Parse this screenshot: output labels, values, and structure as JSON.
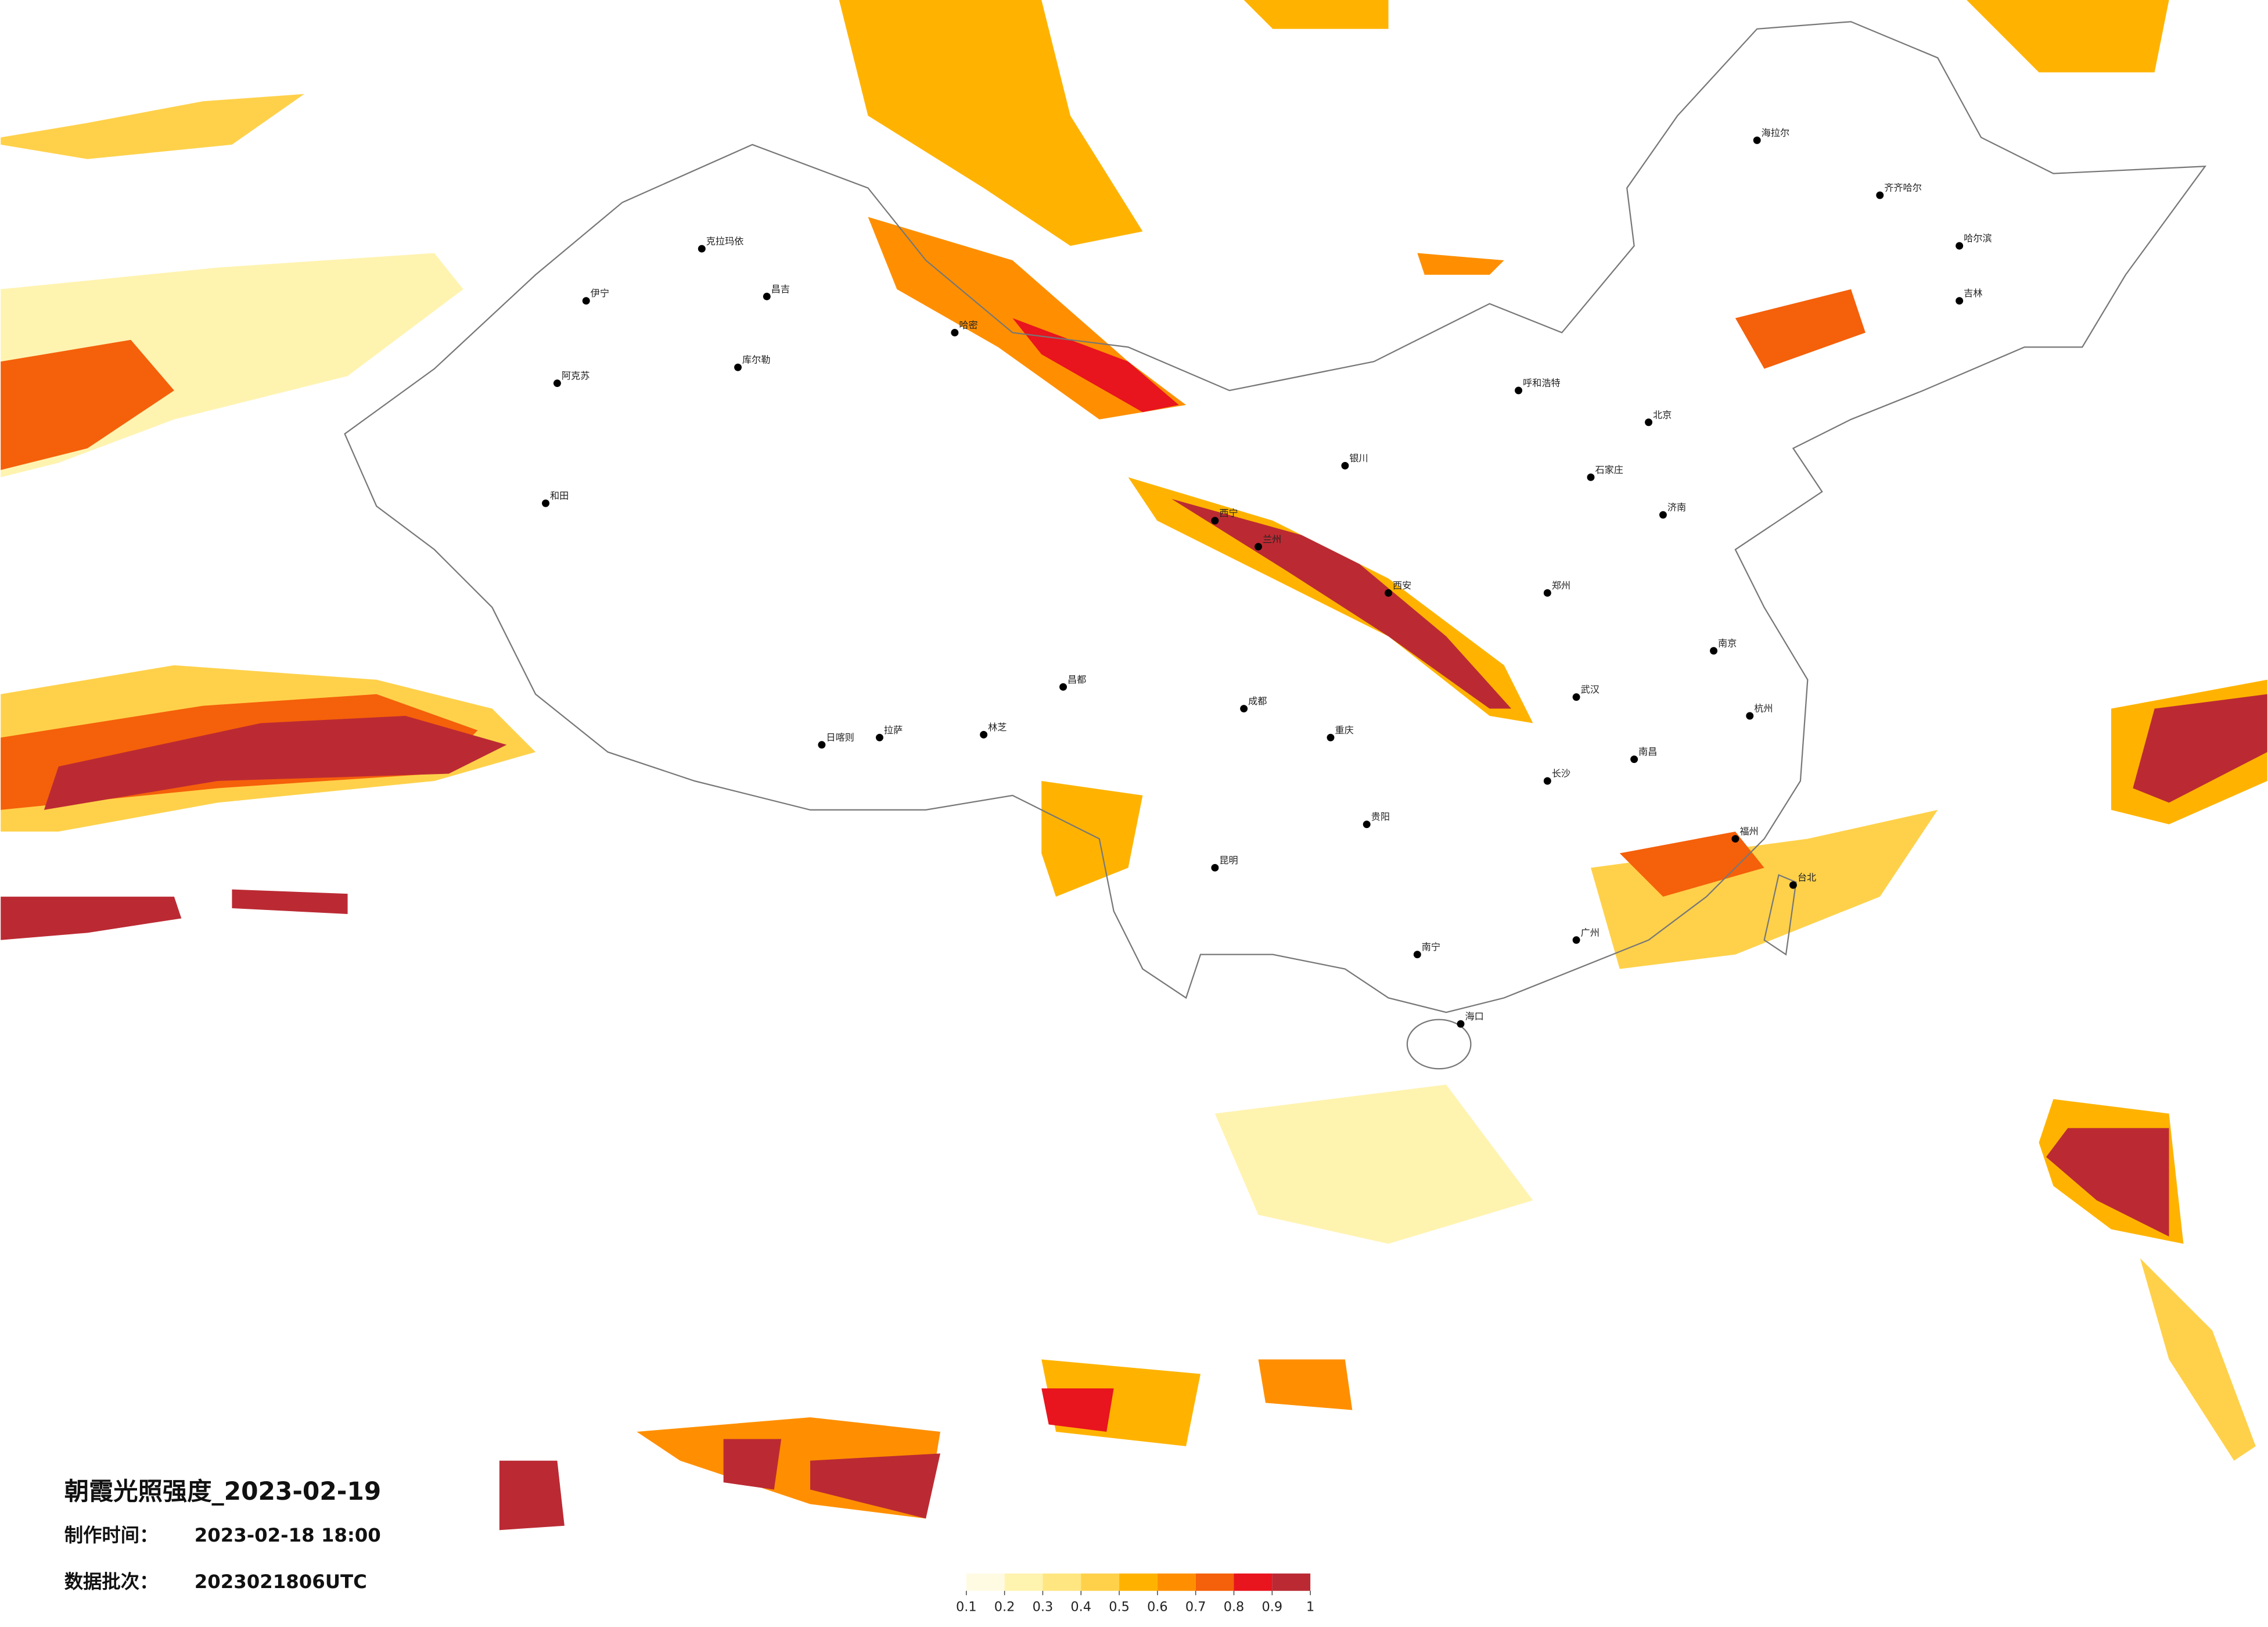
{
  "header": {
    "title": "朝霞光照强度_2023-02-19",
    "made_label": "制作时间：",
    "made_time": "2023-02-18 18:00",
    "batch_label": "数据批次：",
    "batch": "2023021806UTC"
  },
  "legend": {
    "ticks": [
      0.1,
      0.2,
      0.3,
      0.4,
      0.5,
      0.6,
      0.7,
      0.8,
      0.9,
      1
    ],
    "colors": [
      "#fffbe3",
      "#fff3b0",
      "#ffe680",
      "#ffd14a",
      "#ffb300",
      "#ff8f00",
      "#f5600a",
      "#e8141e",
      "#bb2a33"
    ]
  },
  "cities": [
    "海拉尔",
    "齐齐哈尔",
    "哈尔滨",
    "吉林",
    "伊宁",
    "阿克苏",
    "和田",
    "克拉玛依",
    "昌吉",
    "库尔勒",
    "哈密",
    "拉萨",
    "日喀则",
    "林芝",
    "昌都",
    "西宁",
    "兰州",
    "银川",
    "呼和浩特",
    "北京",
    "石家庄",
    "济南",
    "郑州",
    "西安",
    "武汉",
    "长沙",
    "南昌",
    "南京",
    "杭州",
    "福州",
    "广州",
    "南宁",
    "贵阳",
    "昆明",
    "成都",
    "重庆",
    "海口",
    "台北"
  ]
}
